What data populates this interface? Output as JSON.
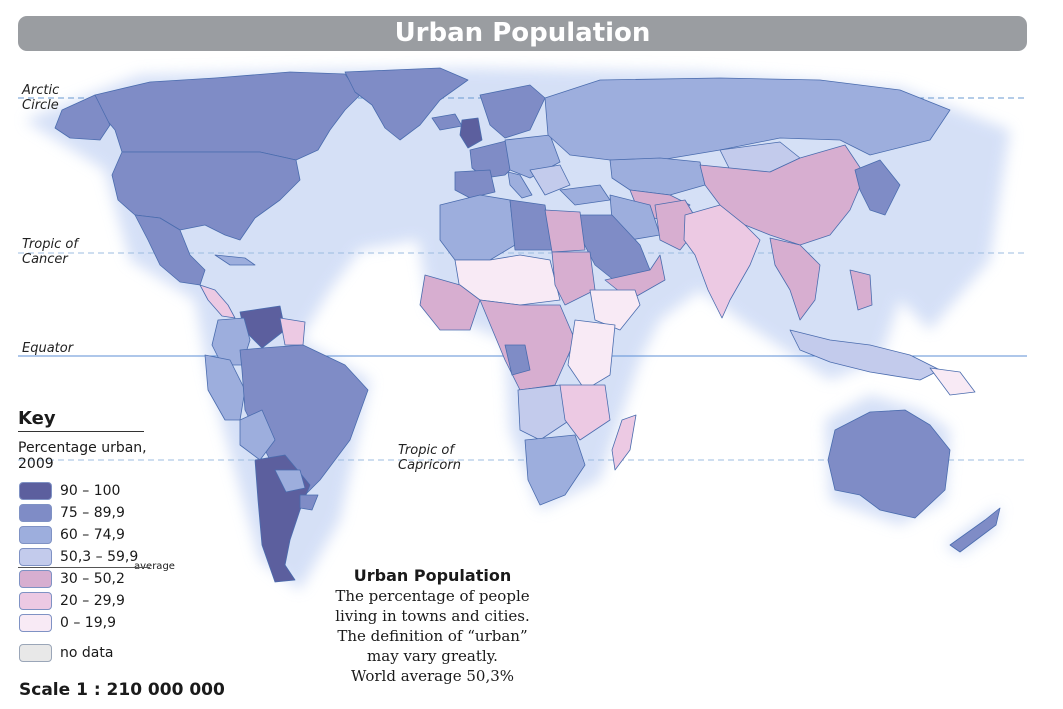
{
  "title": "Urban Population",
  "latitude_lines": {
    "arctic": [
      "Arctic",
      "Circle"
    ],
    "cancer": [
      "Tropic of",
      "Cancer"
    ],
    "equator": [
      "Equator"
    ],
    "capricorn": [
      "Tropic of",
      "Capricorn"
    ]
  },
  "key": {
    "heading": "Key",
    "subtitle": "Percentage urban, 2009",
    "classes": [
      {
        "label": "90 – 100",
        "color": "#5c5f9e"
      },
      {
        "label": "75 – 89,9",
        "color": "#7f8cc6"
      },
      {
        "label": "60 – 74,9",
        "color": "#9daedd"
      },
      {
        "label": "50,3 – 59,9",
        "color": "#c3cbec"
      },
      {
        "label": "30 – 50,2",
        "color": "#d7aed0"
      },
      {
        "label": "20 – 29,9",
        "color": "#ecc9e3"
      },
      {
        "label": "0 – 19,9",
        "color": "#f8eaf5"
      }
    ],
    "average_label": "average",
    "no_data": {
      "label": "no data",
      "color": "#e8e8e8"
    }
  },
  "scale": "Scale 1 : 210 000 000",
  "note": {
    "title": "Urban Population",
    "lines": [
      "The percentage of people",
      "living in towns and cities.",
      "The definition of “urban”",
      "may vary greatly.",
      "World average 50,3%"
    ]
  },
  "colors": {
    "ocean": "#ffffff",
    "glow": "#c7d6f4",
    "border": "#4a6cae",
    "latitude_dashed": "#6a9ad0",
    "equator": "#5d8fd6",
    "title_bar": "#9a9da1"
  }
}
